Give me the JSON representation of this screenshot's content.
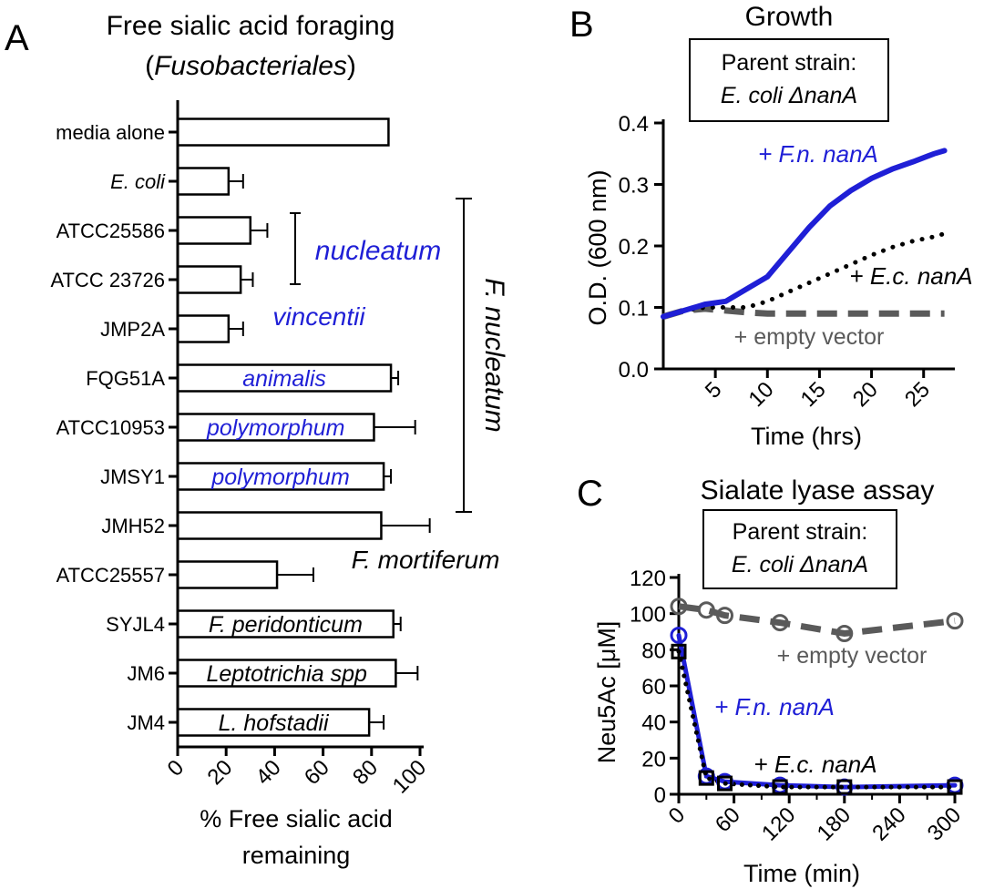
{
  "panels": {
    "A": {
      "letter": "A",
      "title_line1": "Free sialic acid foraging",
      "title_line2_open": "(",
      "title_line2_ital": "Fusobacteriales",
      "title_line2_close": ")"
    },
    "B": {
      "letter": "B",
      "title": "Growth",
      "box_line1": "Parent strain:",
      "box_line2": "E. coli ΔnanA"
    },
    "C": {
      "letter": "C",
      "title": "Sialate lyase assay",
      "box_line1": "Parent strain:",
      "box_line2": "E. coli ΔnanA"
    }
  },
  "colors": {
    "blue": "#1f1fd6",
    "gray": "#5a5a5a",
    "black": "#000000"
  },
  "chart_data": [
    {
      "type": "bar",
      "orientation": "horizontal",
      "xlabel_line1": "% Free sialic acid",
      "xlabel_line2": "remaining",
      "xlim": [
        0,
        100
      ],
      "xticks": [
        "0",
        "20",
        "40",
        "60",
        "80",
        "100"
      ],
      "categories": [
        "media alone",
        "E. coli",
        "ATCC25586",
        "ATCC 23726",
        "JMP2A",
        "FQG51A",
        "ATCC10953",
        "JMSY1",
        "JMH52",
        "ATCC25557",
        "SYJL4",
        "JM6",
        "JM4"
      ],
      "italic_categories": [
        "E. coli"
      ],
      "values": [
        87,
        21,
        30,
        26,
        21,
        88,
        81,
        85,
        84,
        41,
        89,
        90,
        79
      ],
      "errors": [
        0,
        6,
        7,
        5,
        6,
        3,
        17,
        3,
        20,
        15,
        3,
        9,
        6
      ],
      "bar_labels": [
        {
          "index": 5,
          "text": "animalis",
          "color": "blue"
        },
        {
          "index": 6,
          "text": "polymorphum",
          "color": "blue"
        },
        {
          "index": 7,
          "text": "polymorphum",
          "color": "blue"
        },
        {
          "index": 10,
          "text": "F. peridonticum",
          "color": "black"
        },
        {
          "index": 11,
          "text": "Leptotrichia spp",
          "color": "black"
        },
        {
          "index": 12,
          "text": "L. hofstadii",
          "color": "black"
        }
      ],
      "annotations": {
        "nucleatum": "nucleatum",
        "vincentii": "vincentii",
        "f_nucleatum": "F. nucleatum",
        "f_mortiferum": "F. mortiferum"
      }
    },
    {
      "type": "line",
      "xlabel": "Time (hrs)",
      "ylabel": "O.D. (600 nm)",
      "xlim": [
        0,
        28
      ],
      "ylim": [
        0,
        0.4
      ],
      "xticks": [
        "5",
        "10",
        "15",
        "20",
        "25"
      ],
      "yticks": [
        "0.0",
        "0.1",
        "0.2",
        "0.3",
        "0.4"
      ],
      "series": [
        {
          "name": "+ F.n. nanA",
          "style": "solid",
          "color": "blue",
          "x": [
            0,
            2,
            4,
            6,
            8,
            10,
            12,
            14,
            16,
            18,
            20,
            22,
            24,
            26,
            27
          ],
          "y": [
            0.085,
            0.095,
            0.105,
            0.11,
            0.13,
            0.15,
            0.19,
            0.23,
            0.265,
            0.29,
            0.31,
            0.325,
            0.337,
            0.35,
            0.355
          ]
        },
        {
          "name": "+ E.c. nanA",
          "style": "dotted",
          "color": "black",
          "x": [
            0,
            2,
            4,
            6,
            8,
            10,
            12,
            14,
            16,
            18,
            20,
            22,
            24,
            26,
            27
          ],
          "y": [
            0.085,
            0.095,
            0.1,
            0.1,
            0.1,
            0.11,
            0.125,
            0.14,
            0.155,
            0.17,
            0.185,
            0.198,
            0.208,
            0.215,
            0.22
          ]
        },
        {
          "name": "+ empty vector",
          "style": "dashed",
          "color": "gray",
          "x": [
            0,
            2,
            4,
            6,
            8,
            10,
            12,
            14,
            16,
            18,
            20,
            22,
            24,
            26,
            27
          ],
          "y": [
            0.085,
            0.095,
            0.098,
            0.095,
            0.092,
            0.09,
            0.09,
            0.09,
            0.09,
            0.09,
            0.09,
            0.09,
            0.09,
            0.09,
            0.09
          ]
        }
      ]
    },
    {
      "type": "line",
      "xlabel": "Time (min)",
      "ylabel": "Neu5Ac [μM]",
      "xlim": [
        0,
        300
      ],
      "ylim": [
        0,
        120
      ],
      "xticks": [
        "0",
        "60",
        "120",
        "180",
        "240",
        "300"
      ],
      "yticks": [
        "0",
        "20",
        "40",
        "60",
        "80",
        "100",
        "120"
      ],
      "series": [
        {
          "name": "+ empty vector",
          "style": "dashed",
          "marker": "circle",
          "color": "gray",
          "x": [
            0,
            30,
            50,
            110,
            180,
            300
          ],
          "y": [
            104,
            102,
            99,
            95,
            89,
            96
          ]
        },
        {
          "name": "+ F.n. nanA",
          "style": "solid",
          "marker": "circle",
          "color": "blue",
          "x": [
            0,
            30,
            50,
            110,
            180,
            300
          ],
          "y": [
            88,
            10,
            7,
            5,
            4,
            5
          ]
        },
        {
          "name": "+ E.c. nanA",
          "style": "dotted",
          "marker": "square",
          "color": "black",
          "x": [
            0,
            30,
            50,
            110,
            180,
            300
          ],
          "y": [
            79,
            9,
            6,
            4,
            4,
            4
          ]
        }
      ]
    }
  ]
}
